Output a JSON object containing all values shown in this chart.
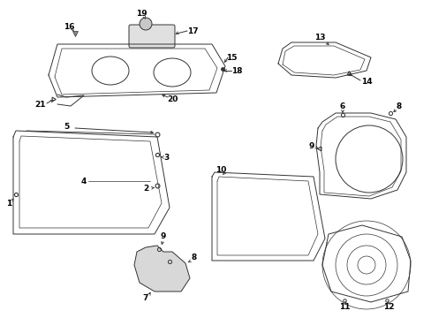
{
  "bg_color": "#ffffff",
  "lc": "#333333",
  "lw": 0.7,
  "fs": 6.5,
  "fw": "bold"
}
